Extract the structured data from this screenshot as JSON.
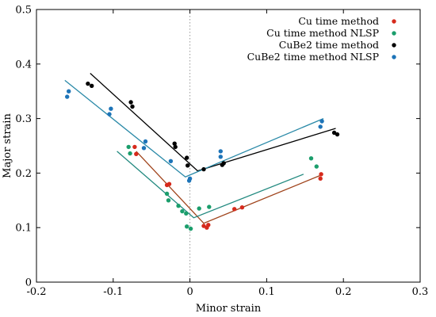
{
  "chart_data": {
    "type": "scatter",
    "xlabel": "Minor strain",
    "ylabel": "Major strain",
    "xlim": [
      -0.2,
      0.3
    ],
    "ylim": [
      0,
      0.5
    ],
    "xticks": [
      -0.2,
      -0.1,
      0,
      0.1,
      0.2,
      0.3
    ],
    "xtick_labels": [
      "-0.2",
      "-0.1",
      "0",
      "0.1",
      "0.2",
      "0.3"
    ],
    "yticks": [
      0,
      0.1,
      0.2,
      0.3,
      0.4,
      0.5
    ],
    "ytick_labels": [
      "0",
      "0.1",
      "0.2",
      "0.3",
      "0.4",
      "0.5"
    ],
    "grid": false,
    "vertical_reference_line": {
      "x": 0,
      "style": "dotted",
      "color": "#9a9a9a"
    },
    "legend_position": "top-right",
    "series": [
      {
        "name": "Cu time method",
        "color": "#d62a1c",
        "line_color": "#a0441c",
        "points": [
          {
            "x": -0.072,
            "y": 0.248
          },
          {
            "x": -0.07,
            "y": 0.235
          },
          {
            "x": -0.03,
            "y": 0.178
          },
          {
            "x": -0.027,
            "y": 0.18
          },
          {
            "x": 0.018,
            "y": 0.103
          },
          {
            "x": 0.022,
            "y": 0.1
          },
          {
            "x": 0.024,
            "y": 0.105
          },
          {
            "x": 0.058,
            "y": 0.134
          },
          {
            "x": 0.068,
            "y": 0.137
          },
          {
            "x": 0.17,
            "y": 0.19
          },
          {
            "x": 0.171,
            "y": 0.198
          }
        ],
        "fit_line": [
          {
            "x": -0.07,
            "y": 0.24
          },
          {
            "x": 0.018,
            "y": 0.108
          },
          {
            "x": 0.172,
            "y": 0.197
          }
        ]
      },
      {
        "name": "Cu time method NLSP",
        "color": "#1b9e6c",
        "line_color": "#238a80",
        "points": [
          {
            "x": -0.08,
            "y": 0.248
          },
          {
            "x": -0.078,
            "y": 0.236
          },
          {
            "x": -0.03,
            "y": 0.162
          },
          {
            "x": -0.028,
            "y": 0.15
          },
          {
            "x": -0.015,
            "y": 0.14
          },
          {
            "x": -0.01,
            "y": 0.13
          },
          {
            "x": -0.005,
            "y": 0.126
          },
          {
            "x": -0.004,
            "y": 0.102
          },
          {
            "x": 0.001,
            "y": 0.098
          },
          {
            "x": 0.012,
            "y": 0.135
          },
          {
            "x": 0.025,
            "y": 0.138
          },
          {
            "x": 0.158,
            "y": 0.227
          },
          {
            "x": 0.165,
            "y": 0.212
          }
        ],
        "fit_line": [
          {
            "x": -0.095,
            "y": 0.24
          },
          {
            "x": 0.005,
            "y": 0.118
          },
          {
            "x": 0.148,
            "y": 0.198
          }
        ]
      },
      {
        "name": "CuBe2 time method",
        "color": "#000000",
        "line_color": "#000000",
        "points": [
          {
            "x": -0.133,
            "y": 0.364
          },
          {
            "x": -0.128,
            "y": 0.36
          },
          {
            "x": -0.077,
            "y": 0.33
          },
          {
            "x": -0.075,
            "y": 0.322
          },
          {
            "x": -0.02,
            "y": 0.254
          },
          {
            "x": -0.019,
            "y": 0.248
          },
          {
            "x": -0.004,
            "y": 0.228
          },
          {
            "x": -0.003,
            "y": 0.214
          },
          {
            "x": 0.018,
            "y": 0.207
          },
          {
            "x": 0.042,
            "y": 0.215
          },
          {
            "x": 0.044,
            "y": 0.218
          },
          {
            "x": 0.188,
            "y": 0.274
          },
          {
            "x": 0.192,
            "y": 0.271
          }
        ],
        "fit_line": [
          {
            "x": -0.13,
            "y": 0.383
          },
          {
            "x": 0.01,
            "y": 0.204
          },
          {
            "x": 0.19,
            "y": 0.282
          }
        ]
      },
      {
        "name": "CuBe2 time method NLSP",
        "color": "#1d74b8",
        "line_color": "#2b8aa8",
        "points": [
          {
            "x": -0.16,
            "y": 0.34
          },
          {
            "x": -0.158,
            "y": 0.35
          },
          {
            "x": -0.105,
            "y": 0.308
          },
          {
            "x": -0.103,
            "y": 0.318
          },
          {
            "x": -0.058,
            "y": 0.258
          },
          {
            "x": -0.06,
            "y": 0.246
          },
          {
            "x": -0.025,
            "y": 0.222
          },
          {
            "x": -0.001,
            "y": 0.186
          },
          {
            "x": 0.0,
            "y": 0.19
          },
          {
            "x": 0.04,
            "y": 0.23
          },
          {
            "x": 0.04,
            "y": 0.24
          },
          {
            "x": 0.17,
            "y": 0.285
          },
          {
            "x": 0.172,
            "y": 0.295
          }
        ],
        "fit_line": [
          {
            "x": -0.163,
            "y": 0.37
          },
          {
            "x": -0.006,
            "y": 0.193
          },
          {
            "x": 0.174,
            "y": 0.3
          }
        ]
      }
    ]
  }
}
